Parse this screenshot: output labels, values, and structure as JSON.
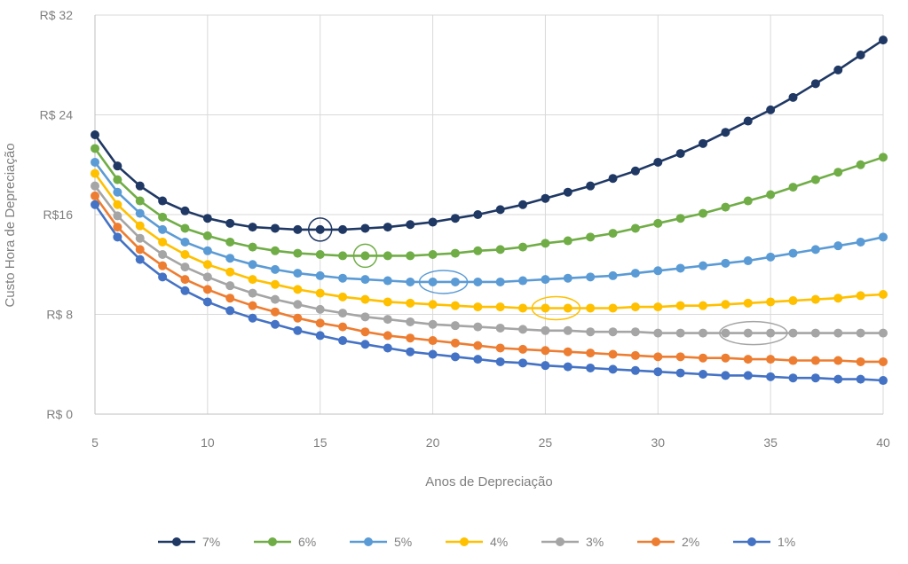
{
  "chart_data": {
    "type": "line",
    "title": "",
    "xlabel": "Anos de Depreciação",
    "ylabel": "Custo Hora de Depreciação",
    "xlim": [
      5,
      40
    ],
    "ylim": [
      0,
      32
    ],
    "x_ticks": [
      5,
      10,
      15,
      20,
      25,
      30,
      35,
      40
    ],
    "x_tick_labels": [
      "5",
      "10",
      "15",
      "20",
      "25",
      "30",
      "35",
      "40"
    ],
    "y_ticks": [
      0,
      8,
      16,
      24,
      32
    ],
    "y_tick_labels": [
      "R$ 0",
      "R$ 8",
      "R$16",
      "R$ 24",
      "R$ 32"
    ],
    "grid": true,
    "legend_position": "bottom",
    "x": [
      5,
      6,
      7,
      8,
      9,
      10,
      11,
      12,
      13,
      14,
      15,
      16,
      17,
      18,
      19,
      20,
      21,
      22,
      23,
      24,
      25,
      26,
      27,
      28,
      29,
      30,
      31,
      32,
      33,
      34,
      35,
      36,
      37,
      38,
      39,
      40
    ],
    "series": [
      {
        "name": "7%",
        "color": "#1f3864",
        "values": [
          22.4,
          19.9,
          18.3,
          17.1,
          16.3,
          15.7,
          15.3,
          15.0,
          14.9,
          14.8,
          14.8,
          14.8,
          14.9,
          15.0,
          15.2,
          15.4,
          15.7,
          16.0,
          16.4,
          16.8,
          17.3,
          17.8,
          18.3,
          18.9,
          19.5,
          20.2,
          20.9,
          21.7,
          22.6,
          23.5,
          24.4,
          25.4,
          26.5,
          27.6,
          28.8,
          30.0
        ],
        "highlight_index": 10
      },
      {
        "name": "6%",
        "color": "#70ad47",
        "values": [
          21.3,
          18.8,
          17.1,
          15.8,
          14.9,
          14.3,
          13.8,
          13.4,
          13.1,
          12.9,
          12.8,
          12.7,
          12.7,
          12.7,
          12.7,
          12.8,
          12.9,
          13.1,
          13.2,
          13.4,
          13.7,
          13.9,
          14.2,
          14.5,
          14.9,
          15.3,
          15.7,
          16.1,
          16.6,
          17.1,
          17.6,
          18.2,
          18.8,
          19.4,
          20.0,
          20.6
        ],
        "highlight_index": 12
      },
      {
        "name": "5%",
        "color": "#5b9bd5",
        "values": [
          20.2,
          17.8,
          16.1,
          14.8,
          13.8,
          13.1,
          12.5,
          12.0,
          11.6,
          11.3,
          11.1,
          10.9,
          10.8,
          10.7,
          10.6,
          10.6,
          10.6,
          10.6,
          10.6,
          10.7,
          10.8,
          10.9,
          11.0,
          11.1,
          11.3,
          11.5,
          11.7,
          11.9,
          12.1,
          12.3,
          12.6,
          12.9,
          13.2,
          13.5,
          13.8,
          14.2
        ],
        "highlight_index": 15
      },
      {
        "name": "4%",
        "color": "#ffc000",
        "values": [
          19.3,
          16.8,
          15.1,
          13.8,
          12.8,
          12.0,
          11.4,
          10.8,
          10.4,
          10.0,
          9.7,
          9.4,
          9.2,
          9.0,
          8.9,
          8.8,
          8.7,
          8.6,
          8.6,
          8.5,
          8.5,
          8.5,
          8.5,
          8.5,
          8.6,
          8.6,
          8.7,
          8.7,
          8.8,
          8.9,
          9.0,
          9.1,
          9.2,
          9.3,
          9.5,
          9.6
        ],
        "highlight_index": 20
      },
      {
        "name": "3%",
        "color": "#a5a5a5",
        "values": [
          18.3,
          15.9,
          14.1,
          12.8,
          11.8,
          11.0,
          10.3,
          9.7,
          9.2,
          8.8,
          8.4,
          8.1,
          7.8,
          7.6,
          7.4,
          7.2,
          7.1,
          7.0,
          6.9,
          6.8,
          6.7,
          6.7,
          6.6,
          6.6,
          6.6,
          6.5,
          6.5,
          6.5,
          6.5,
          6.5,
          6.5,
          6.5,
          6.5,
          6.5,
          6.5,
          6.5
        ],
        "highlight_index": 29
      },
      {
        "name": "2%",
        "color": "#ed7d31",
        "values": [
          17.5,
          15.0,
          13.2,
          11.9,
          10.8,
          10.0,
          9.3,
          8.7,
          8.2,
          7.7,
          7.3,
          7.0,
          6.6,
          6.3,
          6.1,
          5.9,
          5.7,
          5.5,
          5.3,
          5.2,
          5.1,
          5.0,
          4.9,
          4.8,
          4.7,
          4.6,
          4.6,
          4.5,
          4.5,
          4.4,
          4.4,
          4.3,
          4.3,
          4.3,
          4.2,
          4.2
        ],
        "highlight_index": -1
      },
      {
        "name": "1%",
        "color": "#4472c4",
        "values": [
          16.8,
          14.2,
          12.4,
          11.0,
          9.9,
          9.0,
          8.3,
          7.7,
          7.2,
          6.7,
          6.3,
          5.9,
          5.6,
          5.3,
          5.0,
          4.8,
          4.6,
          4.4,
          4.2,
          4.1,
          3.9,
          3.8,
          3.7,
          3.6,
          3.5,
          3.4,
          3.3,
          3.2,
          3.1,
          3.1,
          3.0,
          2.9,
          2.9,
          2.8,
          2.8,
          2.7
        ],
        "highlight_index": -1
      }
    ]
  }
}
